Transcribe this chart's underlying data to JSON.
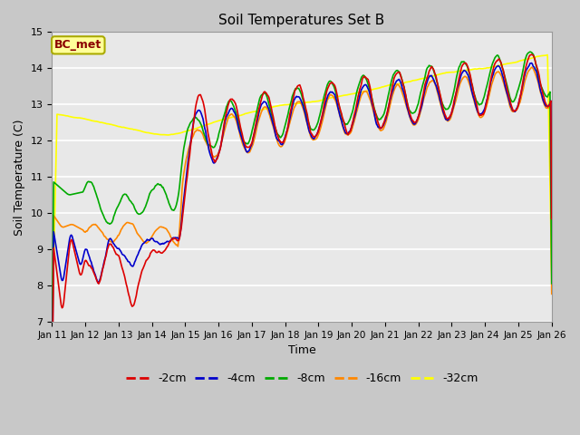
{
  "title": "Soil Temperatures Set B",
  "xlabel": "Time",
  "ylabel": "Soil Temperature (C)",
  "ylim": [
    7.0,
    15.0
  ],
  "yticks": [
    7.0,
    8.0,
    9.0,
    10.0,
    11.0,
    12.0,
    13.0,
    14.0,
    15.0
  ],
  "bg_color": "#e8e8e8",
  "annotation_text": "BC_met",
  "annotation_color": "#8b0000",
  "annotation_bg": "#ffff99",
  "series": [
    {
      "label": "-2cm",
      "color": "#dd0000"
    },
    {
      "label": "-4cm",
      "color": "#0000cc"
    },
    {
      "label": "-8cm",
      "color": "#00aa00"
    },
    {
      "label": "-16cm",
      "color": "#ff8800"
    },
    {
      "label": "-32cm",
      "color": "#ffff00"
    }
  ],
  "xtick_labels": [
    "Jan 11",
    "Jan 12",
    "Jan 13",
    "Jan 14",
    "Jan 15",
    "Jan 16",
    "Jan 17",
    "Jan 18",
    "Jan 19",
    "Jan 20",
    "Jan 21",
    "Jan 22",
    "Jan 23",
    "Jan 24",
    "Jan 25",
    "Jan 26"
  ],
  "xlim": [
    0,
    15
  ],
  "figsize": [
    6.4,
    4.8
  ],
  "dpi": 100
}
